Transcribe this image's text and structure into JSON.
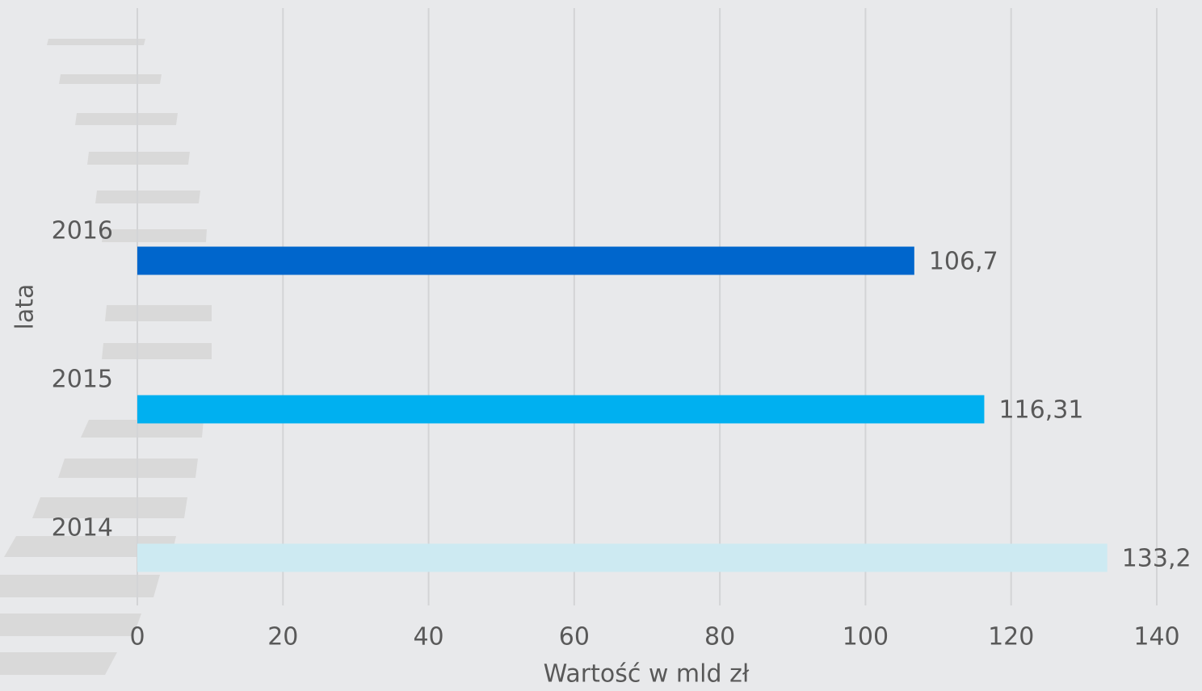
{
  "chart_data": {
    "type": "barh",
    "categories": [
      "2016",
      "2015",
      "2014"
    ],
    "values": [
      106.7,
      116.31,
      133.2
    ],
    "value_labels": [
      "106,7",
      "116,31",
      "133,2"
    ],
    "colors": [
      "#0066cc",
      "#00b0f0",
      "#cdeaf2"
    ],
    "xlim": [
      0,
      140
    ],
    "xticks": [
      0,
      20,
      40,
      60,
      80,
      100,
      120,
      140
    ],
    "x_label": "Wartość w mld zł",
    "y_label": "lata",
    "grid": true
  }
}
